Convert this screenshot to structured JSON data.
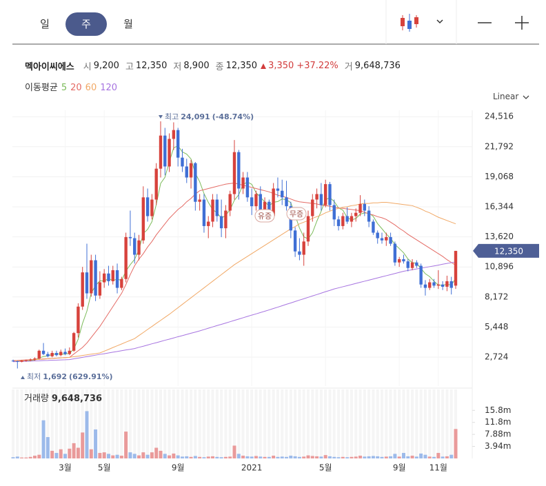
{
  "tabs": [
    "일",
    "주",
    "월"
  ],
  "header": {
    "name": "멕아이씨에스",
    "stats": [
      {
        "label": "시",
        "value": "9,200"
      },
      {
        "label": "고",
        "value": "12,350"
      },
      {
        "label": "저",
        "value": "8,900"
      },
      {
        "label": "종",
        "value": "12,350"
      }
    ],
    "change": "3,350",
    "change_pct": "+37.22%",
    "volume_label": "거",
    "volume": "9,648,736"
  },
  "ma_legend_title": "이동평균",
  "scale": "Linear",
  "chart_data": {
    "type": "candlestick",
    "categories": [
      null,
      null,
      null,
      null,
      null,
      null,
      null,
      null,
      null,
      null,
      null,
      null,
      "3월",
      null,
      null,
      null,
      null,
      null,
      null,
      null,
      null,
      "5월",
      null,
      null,
      null,
      null,
      null,
      null,
      null,
      null,
      null,
      null,
      null,
      null,
      null,
      null,
      null,
      null,
      "9월",
      null,
      null,
      null,
      null,
      null,
      null,
      null,
      null,
      null,
      null,
      null,
      null,
      null,
      null,
      null,
      null,
      "2021",
      null,
      null,
      null,
      null,
      null,
      null,
      null,
      null,
      null,
      null,
      null,
      null,
      null,
      null,
      null,
      null,
      "5월",
      null,
      null,
      null,
      null,
      null,
      null,
      null,
      null,
      null,
      null,
      null,
      null,
      null,
      null,
      null,
      null,
      "9월",
      null,
      null,
      null,
      null,
      null,
      null,
      null,
      null,
      "11월",
      null,
      null,
      null,
      null
    ],
    "open": [
      2400,
      2350,
      2300,
      2400,
      2450,
      2500,
      2600,
      3300,
      3000,
      2800,
      3100,
      2900,
      3200,
      3000,
      3300,
      4900,
      7300,
      10400,
      8500,
      11500,
      8300,
      9500,
      10300,
      9600,
      10600,
      9000,
      9800,
      13600,
      13500,
      12000,
      13300,
      17200,
      15500,
      17000,
      19800,
      22800,
      20000,
      22500,
      23300,
      20800,
      20000,
      19000,
      20300,
      16800,
      17000,
      14600,
      15000,
      17000,
      15500,
      14400,
      16000,
      17500,
      21300,
      18000,
      19000,
      17200,
      16400,
      17500,
      16000,
      16800,
      15500,
      18000,
      17800,
      17200,
      16400,
      14200,
      12300,
      12000,
      13200,
      15500,
      17000,
      17500,
      16500,
      18400,
      16500,
      15200,
      14600,
      15500,
      15000,
      15500,
      15800,
      16600,
      16000,
      15000,
      14000,
      13500,
      13300,
      13600,
      13000,
      11300,
      11600,
      11400,
      10800,
      11300,
      11000,
      9300,
      9000,
      9500,
      9200,
      9300,
      9100,
      9600,
      9200
    ],
    "high": [
      2500,
      2400,
      2450,
      2500,
      2600,
      2700,
      3400,
      4000,
      3200,
      3300,
      3300,
      3400,
      3500,
      3600,
      5000,
      7600,
      10900,
      13000,
      12000,
      12000,
      10500,
      10700,
      11000,
      11000,
      11200,
      10000,
      14000,
      16000,
      14000,
      13800,
      18200,
      18000,
      17500,
      20300,
      24091,
      23500,
      23000,
      24000,
      23500,
      21600,
      20700,
      20600,
      20400,
      17500,
      17500,
      15500,
      17500,
      17500,
      17000,
      16500,
      17800,
      22400,
      21500,
      19500,
      19500,
      18000,
      17800,
      18200,
      17200,
      17000,
      18500,
      19000,
      18800,
      18700,
      16800,
      14500,
      13500,
      14000,
      16000,
      17500,
      18000,
      18500,
      18800,
      18600,
      17000,
      15500,
      15800,
      16300,
      15800,
      16200,
      17400,
      17000,
      16400,
      15200,
      14200,
      14000,
      14000,
      14000,
      13200,
      11800,
      12000,
      11600,
      11600,
      11500,
      11200,
      9700,
      9800,
      9800,
      10600,
      9600,
      10100,
      10000,
      12350
    ],
    "low": [
      2300,
      1692,
      2250,
      2300,
      2350,
      2400,
      2500,
      2900,
      2700,
      2700,
      2800,
      2800,
      2900,
      2900,
      3200,
      4500,
      7000,
      8000,
      8200,
      7800,
      8000,
      9000,
      9200,
      9300,
      8500,
      8800,
      9500,
      12800,
      11200,
      11500,
      13000,
      15000,
      15200,
      16500,
      19000,
      19200,
      19500,
      21500,
      20000,
      19500,
      18500,
      18000,
      16000,
      16000,
      14000,
      13500,
      14500,
      15000,
      13600,
      13500,
      15500,
      17000,
      17000,
      17500,
      16800,
      15600,
      16000,
      15500,
      15000,
      15000,
      15200,
      17200,
      16500,
      16000,
      13500,
      11800,
      11500,
      11000,
      12800,
      15000,
      16200,
      16000,
      16300,
      16000,
      14600,
      14200,
      14300,
      14800,
      14500,
      15000,
      15500,
      15500,
      14500,
      13800,
      13000,
      13000,
      12800,
      12800,
      11000,
      10900,
      11200,
      10500,
      10600,
      10800,
      9000,
      8300,
      8800,
      9000,
      8900,
      8800,
      8700,
      8400,
      8900
    ],
    "close": [
      2350,
      2300,
      2400,
      2450,
      2500,
      2600,
      3300,
      3000,
      2800,
      3100,
      2900,
      3200,
      3000,
      3300,
      4900,
      7300,
      10400,
      8500,
      11500,
      8300,
      9500,
      10300,
      9600,
      10600,
      9000,
      9800,
      13600,
      13500,
      12000,
      13300,
      17200,
      15500,
      17000,
      19800,
      22800,
      20000,
      22500,
      23300,
      20800,
      20000,
      19000,
      20300,
      16800,
      17000,
      14600,
      15000,
      17000,
      15500,
      14400,
      16000,
      17500,
      21300,
      18000,
      19000,
      17200,
      16400,
      17500,
      16000,
      16800,
      15500,
      18000,
      17800,
      17200,
      16400,
      14200,
      12300,
      12000,
      13200,
      15500,
      17000,
      17500,
      16500,
      18400,
      16500,
      15200,
      14600,
      15500,
      15000,
      15500,
      15800,
      16600,
      16000,
      15000,
      14000,
      13500,
      13300,
      13600,
      13000,
      11300,
      11600,
      11400,
      10800,
      11300,
      11000,
      9300,
      9000,
      9500,
      9200,
      9300,
      9100,
      9600,
      9000,
      12350
    ],
    "up_color": "#d7423c",
    "down_color": "#3f6fd5",
    "ma": [
      {
        "name": "5",
        "color": "#7cbb5a",
        "values": [
          2400,
          2380,
          2380,
          2400,
          2410,
          2460,
          2650,
          2770,
          2840,
          2960,
          3020,
          3000,
          3000,
          3060,
          3460,
          4340,
          5780,
          6880,
          8520,
          9200,
          9640,
          9620,
          9840,
          9660,
          9800,
          9660,
          10520,
          11100,
          11580,
          12440,
          13920,
          14300,
          15000,
          16560,
          18460,
          19020,
          20420,
          21680,
          21880,
          21320,
          21120,
          20680,
          19380,
          18620,
          17540,
          16740,
          16080,
          15820,
          15300,
          15580,
          16080,
          16940,
          17440,
          18360,
          18600,
          18380,
          17620,
          17220,
          16780,
          16440,
          16760,
          16820,
          17060,
          16980,
          16720,
          15580,
          14420,
          13620,
          13440,
          14000,
          15040,
          15940,
          16980,
          17180,
          16820,
          16240,
          16040,
          15360,
          15160,
          15280,
          15680,
          15780,
          15780,
          15480,
          14820,
          14360,
          13880,
          13480,
          12940,
          12560,
          12180,
          11620,
          11280,
          11220,
          10760,
          10280,
          10020,
          9600,
          9260,
          9220,
          9340,
          9240,
          9870
        ]
      },
      {
        "name": "20",
        "color": "#e46a64",
        "values": [
          2400,
          2420,
          2450,
          2470,
          2490,
          2510,
          2540,
          2560,
          2580,
          2610,
          2630,
          2650,
          2680,
          2700,
          3000,
          3300,
          3600,
          4000,
          4500,
          5000,
          5500,
          6100,
          6700,
          7300,
          7900,
          8500,
          9300,
          10200,
          11000,
          11600,
          12100,
          12700,
          13200,
          13800,
          14300,
          14800,
          15300,
          15700,
          16100,
          16400,
          16800,
          17100,
          17500,
          17800,
          17900,
          18000,
          18100,
          18200,
          18300,
          18400,
          18450,
          18500,
          18400,
          18300,
          18200,
          18100,
          18000,
          17900,
          17800,
          17700,
          17550,
          17400,
          17300,
          17200,
          17050,
          16900,
          16800,
          16750,
          16700,
          16650,
          16600,
          16500,
          16450,
          16400,
          16300,
          16250,
          16200,
          16150,
          16100,
          16050,
          16000,
          15850,
          15700,
          15600,
          15450,
          15350,
          15200,
          14950,
          14700,
          14400,
          14150,
          13850,
          13600,
          13350,
          13100,
          12850,
          12600,
          12350,
          12100,
          11850,
          11550,
          11300,
          11050
        ]
      },
      {
        "name": "60",
        "color": "#f1a865",
        "values": [
          2350,
          2380,
          2400,
          2430,
          2460,
          2490,
          2510,
          2540,
          2570,
          2600,
          2620,
          2650,
          2680,
          2700,
          2760,
          2810,
          2870,
          2930,
          2990,
          3040,
          3100,
          3260,
          3420,
          3590,
          3750,
          3910,
          4080,
          4240,
          4400,
          4680,
          4950,
          5230,
          5500,
          5780,
          6050,
          6330,
          6600,
          6900,
          7200,
          7500,
          7800,
          8100,
          8400,
          8700,
          9000,
          9300,
          9600,
          9900,
          10200,
          10500,
          10800,
          11100,
          11350,
          11600,
          11850,
          12100,
          12350,
          12600,
          12850,
          13100,
          13350,
          13600,
          13850,
          14100,
          14350,
          14550,
          14800,
          14950,
          15100,
          15300,
          15450,
          15600,
          15800,
          15950,
          16100,
          16200,
          16300,
          16350,
          16450,
          16500,
          16600,
          16650,
          16650,
          16700,
          16700,
          16750,
          16750,
          16700,
          16650,
          16600,
          16550,
          16500,
          16450,
          16300,
          16150,
          15950,
          15800,
          15600,
          15400,
          15250,
          15100,
          14950,
          14800
        ]
      },
      {
        "name": "120",
        "color": "#a673e0",
        "values": [
          2300,
          2320,
          2330,
          2350,
          2360,
          2380,
          2390,
          2410,
          2420,
          2440,
          2450,
          2470,
          2480,
          2500,
          2570,
          2630,
          2700,
          2770,
          2830,
          2900,
          2970,
          3030,
          3100,
          3170,
          3230,
          3300,
          3370,
          3430,
          3500,
          3610,
          3710,
          3820,
          3930,
          4030,
          4140,
          4250,
          4350,
          4460,
          4570,
          4670,
          4780,
          4890,
          4990,
          5100,
          5220,
          5340,
          5460,
          5580,
          5690,
          5810,
          5930,
          6050,
          6170,
          6290,
          6410,
          6530,
          6640,
          6760,
          6880,
          7000,
          7130,
          7250,
          7380,
          7510,
          7630,
          7760,
          7890,
          8010,
          8140,
          8270,
          8390,
          8520,
          8650,
          8770,
          8900,
          9000,
          9100,
          9200,
          9300,
          9400,
          9500,
          9600,
          9700,
          9800,
          9900,
          10000,
          10100,
          10200,
          10300,
          10400,
          10500,
          10570,
          10640,
          10710,
          10780,
          10850,
          10920,
          10990,
          11060,
          11140,
          11210,
          11280,
          11350
        ]
      }
    ],
    "ylim": [
      100,
      25091
    ],
    "yticks": [
      {
        "value": 2724,
        "label": "2,724"
      },
      {
        "value": 5448,
        "label": "5,448"
      },
      {
        "value": 8172,
        "label": "8,172"
      },
      {
        "value": 10896,
        "label": "10,896"
      },
      {
        "value": 13620,
        "label": "13,620"
      },
      {
        "value": 16344,
        "label": "16,344"
      },
      {
        "value": 19068,
        "label": "19,068"
      },
      {
        "value": 21792,
        "label": "21,792"
      },
      {
        "value": 24516,
        "label": "24,516"
      }
    ],
    "grid": true,
    "last_price": {
      "value": 12350,
      "label": "12,350"
    },
    "max_marker": {
      "text": "최고",
      "value": 24091,
      "label": "24,091",
      "change": "(-48.74%)"
    },
    "min_marker": {
      "text": "최저",
      "value": 1692,
      "label": "1,692",
      "change": "(629.91%)"
    },
    "events": [
      {
        "label": "유증"
      },
      {
        "label": "무증"
      }
    ],
    "volume": {
      "title": "거래량",
      "total": "9,648,736",
      "up_color": "#e99a9a",
      "down_color": "#9cbaea",
      "values": [
        400000,
        600000,
        300000,
        300000,
        500000,
        900000,
        1200000,
        12500000,
        7000000,
        2500000,
        1800000,
        3000000,
        1500000,
        3200000,
        5000000,
        3500000,
        8500000,
        15500000,
        3000000,
        9500000,
        1800000,
        2000000,
        1500000,
        1000000,
        1200000,
        900000,
        8800000,
        2000000,
        1500000,
        1000000,
        2000000,
        1200000,
        2000000,
        3500000,
        2500000,
        1500000,
        1000000,
        1600000,
        1000000,
        600000,
        700000,
        500000,
        800000,
        500000,
        400000,
        600000,
        700000,
        500000,
        400000,
        500000,
        600000,
        4200000,
        1500000,
        900000,
        700000,
        600000,
        800000,
        600000,
        500000,
        500000,
        900000,
        500000,
        600000,
        500000,
        900000,
        700000,
        500000,
        600000,
        1000000,
        800000,
        700000,
        600000,
        1100000,
        700000,
        500000,
        400000,
        500000,
        400000,
        500000,
        600000,
        900000,
        600000,
        700000,
        800000,
        700000,
        500000,
        600000,
        700000,
        1500000,
        600000,
        1800000,
        700000,
        900000,
        600000,
        1600000,
        1200000,
        600000,
        500000,
        1800000,
        600000,
        700000,
        1200000,
        9648736
      ],
      "ylim": [
        0,
        22600000
      ],
      "yticks": [
        {
          "value": 3940000,
          "label": "3.94m"
        },
        {
          "value": 7880000,
          "label": "7.88m"
        },
        {
          "value": 11820000,
          "label": "11.8m"
        },
        {
          "value": 15760000,
          "label": "15.8m"
        }
      ]
    }
  }
}
